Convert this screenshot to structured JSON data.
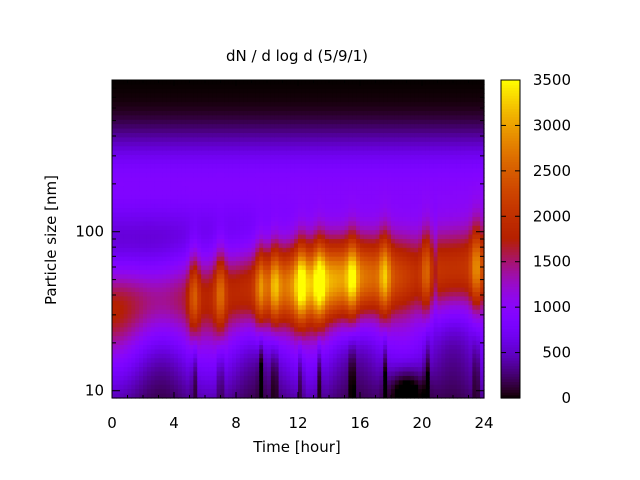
{
  "chart_data": {
    "type": "heatmap",
    "title": "dN / d log d (5/9/1)",
    "xlabel": "Time [hour]",
    "ylabel": "Particle size [nm]",
    "xlim": [
      0,
      24
    ],
    "ylim_nm": [
      9,
      900
    ],
    "yscale": "log",
    "x_ticks": [
      0,
      4,
      8,
      12,
      16,
      20,
      24
    ],
    "x_tick_labels": [
      "0",
      "4",
      "8",
      "12",
      "16",
      "20",
      "24"
    ],
    "y_ticks": [
      10,
      100
    ],
    "y_tick_labels": [
      "10",
      "100"
    ],
    "colorbar": {
      "range": [
        0,
        3500
      ],
      "ticks": [
        0,
        500,
        1000,
        1500,
        2000,
        2500,
        3000,
        3500
      ],
      "tick_labels": [
        "0",
        "500",
        "1000",
        "1500",
        "2000",
        "2500",
        "3000",
        "3500"
      ],
      "colormap": "gnuplot-hot (black-purple-red-orange-yellow)"
    },
    "data_summary": {
      "peak_time_hours": [
        5.3,
        7.0,
        9.6,
        10.5,
        12.2,
        13.4,
        15.5,
        17.6,
        20.3,
        23.5
      ],
      "mode_diameter_nm_range": [
        30,
        80
      ],
      "max_concentration": 3300,
      "background_concentration_small_sizes": 800,
      "low_count_top_region_nm": ">600"
    }
  }
}
